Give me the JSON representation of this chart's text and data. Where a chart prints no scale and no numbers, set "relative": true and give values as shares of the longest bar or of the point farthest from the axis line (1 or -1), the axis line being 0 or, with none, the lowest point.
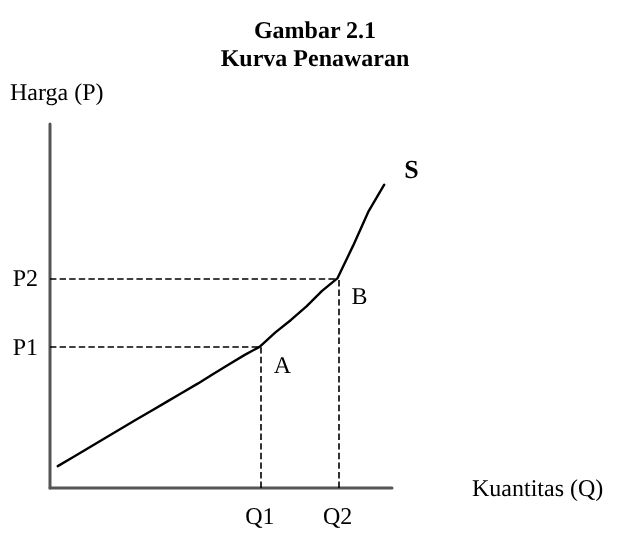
{
  "chart_data": {
    "type": "line",
    "title": "Gambar 2.1",
    "subtitle": "Kurva Penawaran",
    "xlabel": "Kuantitas (Q)",
    "ylabel": "Harga (P)",
    "relative": true,
    "legend": false,
    "marker": "none",
    "line_style": "solid",
    "categories": [
      null,
      null,
      null,
      null,
      null,
      null,
      null,
      null,
      null,
      null,
      null,
      null,
      null,
      "Q1",
      null,
      null,
      null,
      null,
      "Q2",
      null,
      null,
      null
    ],
    "series": [
      {
        "name": "S",
        "color": "#000000",
        "values": [
          0.072,
          0.102,
          0.133,
          0.163,
          0.194,
          0.224,
          0.254,
          0.284,
          0.314,
          0.344,
          0.376,
          0.407,
          0.438,
          0.466,
          0.513,
          0.554,
          0.599,
          0.65,
          0.692,
          0.799,
          0.913,
          1.0
        ]
      }
    ],
    "ref_lines": [
      {
        "axis": "y",
        "value": 0.466,
        "label": "P1",
        "line_style": "dashed",
        "color": "#000000"
      },
      {
        "axis": "y",
        "value": 0.692,
        "label": "P2",
        "line_style": "dashed",
        "color": "#000000"
      }
    ],
    "annotations": [
      {
        "text": "A",
        "x": "Q1",
        "y": 0.466
      },
      {
        "text": "B",
        "x": "Q2",
        "y": 0.692
      }
    ]
  }
}
